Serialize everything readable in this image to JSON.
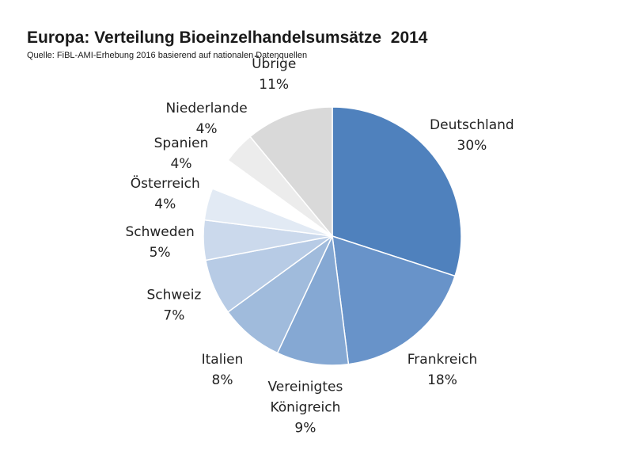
{
  "title": "Europa: Verteilung Bioeinzelhandelsumsätze  2014",
  "subtitle": "Quelle: FiBL-AMI-Erhebung 2016 basierend auf nationalen Datenquellen",
  "chart_data": {
    "type": "pie",
    "title": "Europa: Verteilung Bioeinzelhandelsumsätze  2014",
    "subtitle": "Quelle: FiBL-AMI-Erhebung 2016 basierend auf nationalen Datenquellen",
    "slices": [
      {
        "label": "Deutschland",
        "lines": [
          "Deutschland"
        ],
        "value": 30,
        "value_label": "30%",
        "color": "#4f81bd"
      },
      {
        "label": "Frankreich",
        "lines": [
          "Frankreich"
        ],
        "value": 18,
        "value_label": "18%",
        "color": "#6893c9"
      },
      {
        "label": "Vereinigtes Königreich",
        "lines": [
          "Vereinigtes",
          "Königreich"
        ],
        "value": 9,
        "value_label": "9%",
        "color": "#85a8d3"
      },
      {
        "label": "Italien",
        "lines": [
          "Italien"
        ],
        "value": 8,
        "value_label": "8%",
        "color": "#a0bbdc"
      },
      {
        "label": "Schweiz",
        "lines": [
          "Schweiz"
        ],
        "value": 7,
        "value_label": "7%",
        "color": "#b7cbe5"
      },
      {
        "label": "Schweden",
        "lines": [
          "Schweden"
        ],
        "value": 5,
        "value_label": "5%",
        "color": "#cbd9ec"
      },
      {
        "label": "Österreich",
        "lines": [
          "Österreich"
        ],
        "value": 4,
        "value_label": "4%",
        "color": "#e2eaf4"
      },
      {
        "label": "Spanien",
        "lines": [
          "Spanien"
        ],
        "value": 4,
        "value_label": "4%",
        "color": "#ffffff"
      },
      {
        "label": "Niederlande",
        "lines": [
          "Niederlande"
        ],
        "value": 4,
        "value_label": "4%",
        "color": "#ececec"
      },
      {
        "label": "Übrige",
        "lines": [
          "Übrige"
        ],
        "value": 11,
        "value_label": "11%",
        "color": "#d9d9d9"
      }
    ],
    "start": "12 o'clock",
    "direction": "clockwise",
    "legend": "none"
  }
}
